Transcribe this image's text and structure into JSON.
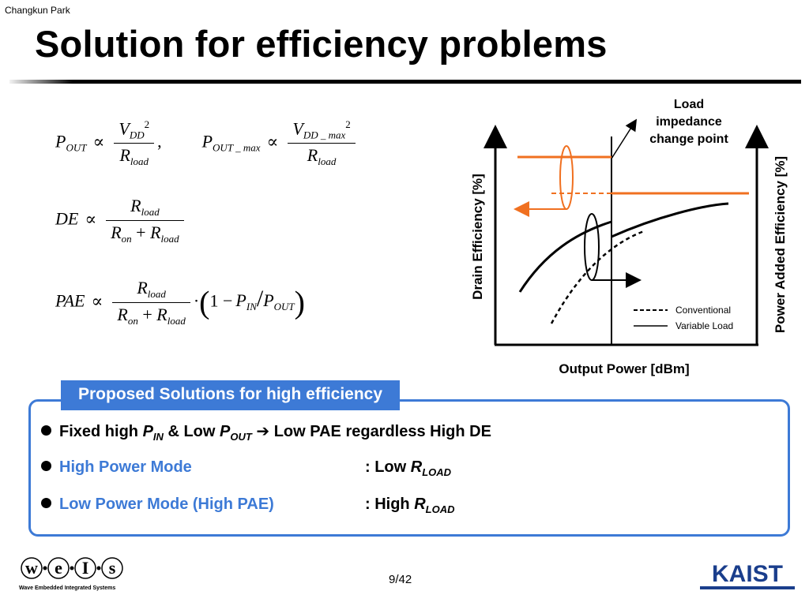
{
  "header": {
    "author": "Changkun Park",
    "title": "Solution for efficiency problems"
  },
  "equations": {
    "eq1": "P_OUT ∝ V_DD^2 / R_load , P_OUT_max ∝ V_DD_max^2 / R_load",
    "eq2": "DE ∝ R_load / (R_on + R_load)",
    "eq3": "PAE ∝ R_load / (R_on + R_load) · (1 − P_IN / P_OUT)"
  },
  "chart": {
    "annotation": "Load impedance change point",
    "annotation_lines": [
      "Load",
      "impedance",
      "change point"
    ],
    "y_left_label": "Drain Efficiency [%]",
    "y_right_label": "Power Added Efficiency [%]",
    "x_label": "Output Power [dBm]",
    "legend": [
      {
        "label": "Conventional",
        "style": "dashed"
      },
      {
        "label": "Variable Load",
        "style": "solid"
      }
    ],
    "colors": {
      "accent": "#f07020",
      "curve": "#000000"
    }
  },
  "chart_data": {
    "type": "line",
    "title": "",
    "xlabel": "Output Power [dBm]",
    "ylabel": "Drain Efficiency [%]",
    "ylabel_right": "Power Added Efficiency [%]",
    "annotation": "Load impedance change point",
    "series": [
      {
        "name": "Conventional",
        "style": "dashed"
      },
      {
        "name": "Variable Load",
        "style": "solid"
      }
    ]
  },
  "solutions": {
    "heading": "Proposed Solutions for high efficiency",
    "item1": {
      "prefix": "Fixed high ",
      "p": "P",
      "in_sub": "IN",
      "mid": " & Low ",
      "p2": "P",
      "out_sub": "OUT",
      "arrow": "➔",
      "suffix": " Low PAE regardless High DE"
    },
    "item2": {
      "label": "High Power Mode",
      "value_prefix": ": Low ",
      "r": "R",
      "sub": "LOAD"
    },
    "item3": {
      "label": "Low Power Mode (High PAE)",
      "value_prefix": ": High ",
      "r": "R",
      "sub": "LOAD"
    },
    "colors": {
      "box": "#3d7ad6"
    }
  },
  "footer": {
    "page": "9/42",
    "left_logo_text": "w·e·i·s",
    "left_logo_caption": "Wave Embedded Integrated Systems",
    "right_logo_text": "KAIST"
  }
}
